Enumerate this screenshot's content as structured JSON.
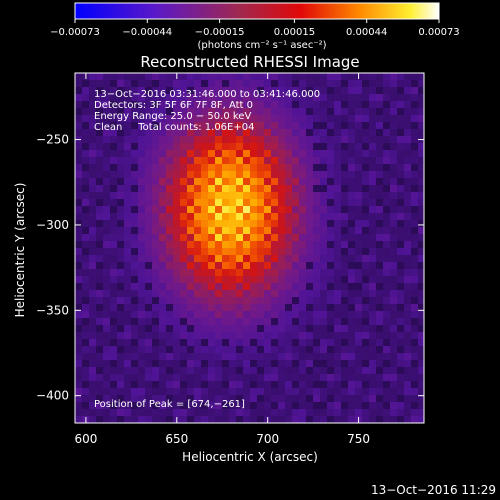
{
  "chart_data": {
    "type": "heatmap",
    "title": "Reconstructed RHESSI Image",
    "xlabel": "Heliocentric X (arcsec)",
    "ylabel": "Heliocentric Y (arcsec)",
    "xlim": [
      594,
      786
    ],
    "ylim": [
      -416,
      -211
    ],
    "x_ticks": [
      600,
      650,
      700,
      750
    ],
    "y_ticks": [
      -250,
      -300,
      -350,
      -400
    ],
    "x_tick_labels": [
      "600",
      "650",
      "700",
      "750"
    ],
    "y_tick_labels": [
      "−250",
      "−300",
      "−350",
      "−400"
    ],
    "colorbar": {
      "ticks": [
        -0.00073,
        -0.00044,
        -0.00015,
        0.00015,
        0.00044,
        0.00073
      ],
      "tick_labels": [
        "−0.00073",
        "−0.00044",
        "−0.00015",
        "0.00015",
        "0.00044",
        "0.00073"
      ],
      "range": [
        -0.00073,
        0.00073
      ],
      "unit_label": "(photons cm⁻² s⁻¹ asec⁻²)",
      "colors": [
        "#0000ff",
        "#6020c0",
        "#a03040",
        "#e00000",
        "#ff8000",
        "#ffff40",
        "#ffffff"
      ]
    },
    "source_peak": {
      "x": 674,
      "y": -261
    },
    "annotations": [
      "13−Oct−2016 03:31:46.000 to 03:41:46.000",
      "Detectors: 3F 5F 6F 7F 8F, Att 0",
      "Energy Range: 25.0 − 50.0 keV",
      "Clean     Total counts: 1.06E+04",
      "Position of Peak = [674,−261]"
    ],
    "footer_timestamp": "13−Oct−2016 11:29"
  }
}
